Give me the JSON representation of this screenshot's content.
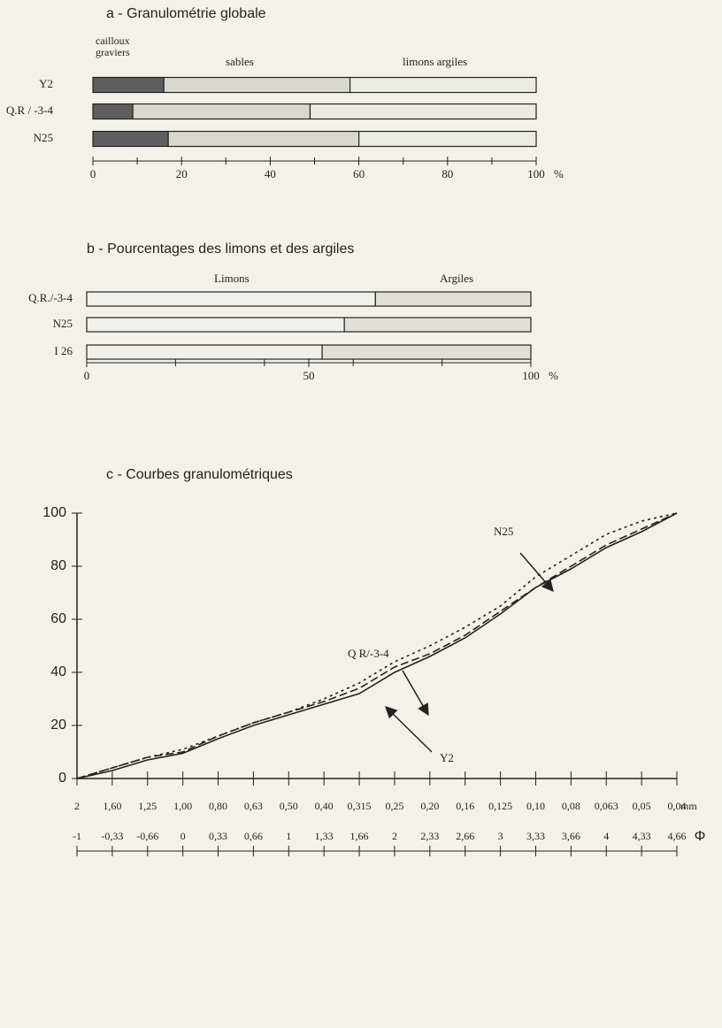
{
  "chart_data": [
    {
      "type": "bar",
      "orientation": "horizontal",
      "stacked": true,
      "title": "a - Granulométrie globale",
      "categories": [
        "Y2",
        "Q.R / -3-4",
        "N25"
      ],
      "series": [
        {
          "name": "cailloux graviers",
          "color": "#5e5e5e",
          "values": [
            16,
            9,
            17
          ]
        },
        {
          "name": "sables",
          "color": "#d9d8d0",
          "values": [
            42,
            40,
            43
          ]
        },
        {
          "name": "limons argiles",
          "color": "#ebebe6",
          "values": [
            42,
            51,
            40
          ]
        }
      ],
      "xlim": [
        0,
        100
      ],
      "xticks": [
        0,
        20,
        40,
        60,
        80,
        100
      ],
      "xminor": [
        10,
        30,
        50,
        70,
        90
      ],
      "xlabel": "%"
    },
    {
      "type": "bar",
      "orientation": "horizontal",
      "stacked": true,
      "title": "b - Pourcentages des limons et des argiles",
      "categories": [
        "Q.R./-3-4",
        "N25",
        "I 26"
      ],
      "series": [
        {
          "name": "Limons",
          "color": "#f0f0ec",
          "values": [
            65,
            58,
            53
          ]
        },
        {
          "name": "Argiles",
          "color": "#e0dfd8",
          "values": [
            35,
            42,
            47
          ]
        }
      ],
      "xlim": [
        0,
        100
      ],
      "xticks": [
        0,
        50,
        100
      ],
      "xminor": [
        20,
        40,
        60,
        80
      ],
      "xlabel": "%"
    },
    {
      "type": "line",
      "title": "c - Courbes granulométriques",
      "categories": [
        "2",
        "1,60",
        "1,25",
        "1,00",
        "0,80",
        "0,63",
        "0,50",
        "0,40",
        "0,315",
        "0,25",
        "0,20",
        "0,16",
        "0,125",
        "0,10",
        "0,08",
        "0,063",
        "0,05",
        "0,04"
      ],
      "categories2": [
        "-1",
        "-0,33",
        "-0,66",
        "0",
        "0,33",
        "0,66",
        "1",
        "1,33",
        "1,66",
        "2",
        "2,33",
        "2,66",
        "3",
        "3,33",
        "3,66",
        "4",
        "4,33",
        "4,66"
      ],
      "xlabel": "mm",
      "x2label": "Φ",
      "ylim": [
        0,
        100
      ],
      "yticks": [
        0,
        20,
        40,
        60,
        80,
        100
      ],
      "series": [
        {
          "name": "N25",
          "color": "#222222",
          "dash": "dotted",
          "values": [
            0,
            4,
            8,
            11,
            16,
            21,
            25,
            30,
            36,
            44,
            50,
            57,
            65,
            76,
            84,
            92,
            97,
            100
          ]
        },
        {
          "name": "Q R/-3-4",
          "color": "#222222",
          "dash": "dashed",
          "values": [
            0,
            4,
            8,
            10,
            16,
            21,
            25,
            29,
            34,
            42,
            47,
            54,
            63,
            72,
            80,
            88,
            94,
            100
          ]
        },
        {
          "name": "Y2",
          "color": "#222222",
          "dash": "solid",
          "values": [
            0,
            3,
            7,
            9.5,
            15,
            20,
            24,
            28,
            32,
            40,
            46,
            53,
            62,
            72,
            79,
            87,
            93,
            100
          ]
        }
      ]
    }
  ]
}
